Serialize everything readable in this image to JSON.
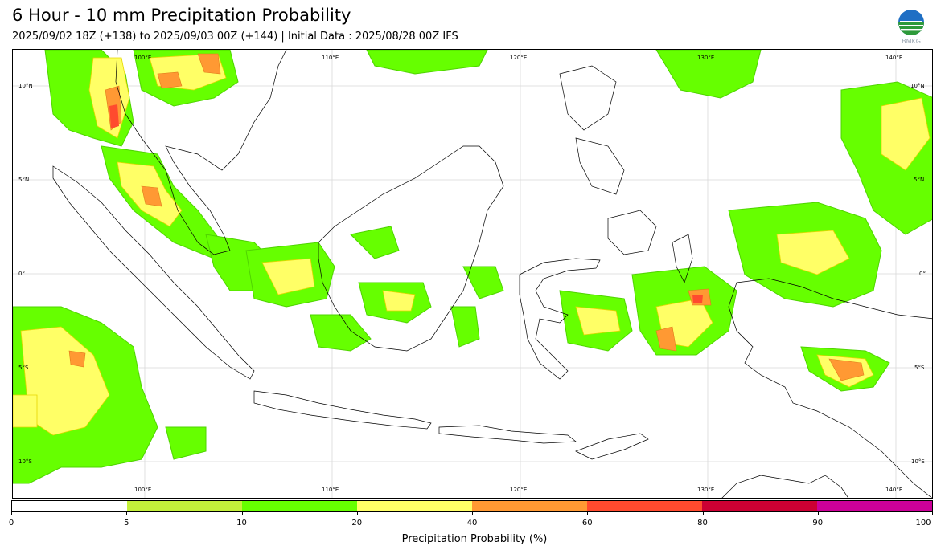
{
  "header": {
    "title": "6 Hour - 10 mm Precipitation Probability",
    "subtitle": "2025/09/02 18Z (+138) to 2025/09/03 00Z (+144) | Initial Data : 2025/08/28 00Z IFS"
  },
  "logo": {
    "text": "BMKG",
    "icon": "bmkg-globe-logo"
  },
  "map": {
    "region": "Indonesia",
    "lon_labels_top": [
      "100°E",
      "110°E",
      "120°E",
      "130°E",
      "140°E"
    ],
    "lon_labels_bottom": [
      "100°E",
      "110°E",
      "120°E",
      "130°E",
      "140°E"
    ],
    "lat_labels_left": [
      "10°N",
      "5°N",
      "0°",
      "5°S",
      "10°S"
    ],
    "lat_labels_right": [
      "10°N",
      "5°N",
      "0°",
      "5°S",
      "10°S"
    ],
    "gridlines": true,
    "colors": {
      "coast": "#000000",
      "grid": "#d8d8d8"
    }
  },
  "colorbar": {
    "label": "Precipitation Probability (%)",
    "ticks": [
      "0",
      "5",
      "10",
      "20",
      "40",
      "60",
      "80",
      "90",
      "100"
    ],
    "segments": [
      {
        "from": 0,
        "to": 5,
        "color": "#ffffff"
      },
      {
        "from": 5,
        "to": 10,
        "color": "#c4f03a"
      },
      {
        "from": 10,
        "to": 20,
        "color": "#66ff00"
      },
      {
        "from": 20,
        "to": 40,
        "color": "#ffff66"
      },
      {
        "from": 40,
        "to": 60,
        "color": "#ff9933"
      },
      {
        "from": 60,
        "to": 80,
        "color": "#ff4a2e"
      },
      {
        "from": 80,
        "to": 90,
        "color": "#cc0033"
      },
      {
        "from": 90,
        "to": 100,
        "color": "#cc0099"
      }
    ]
  }
}
